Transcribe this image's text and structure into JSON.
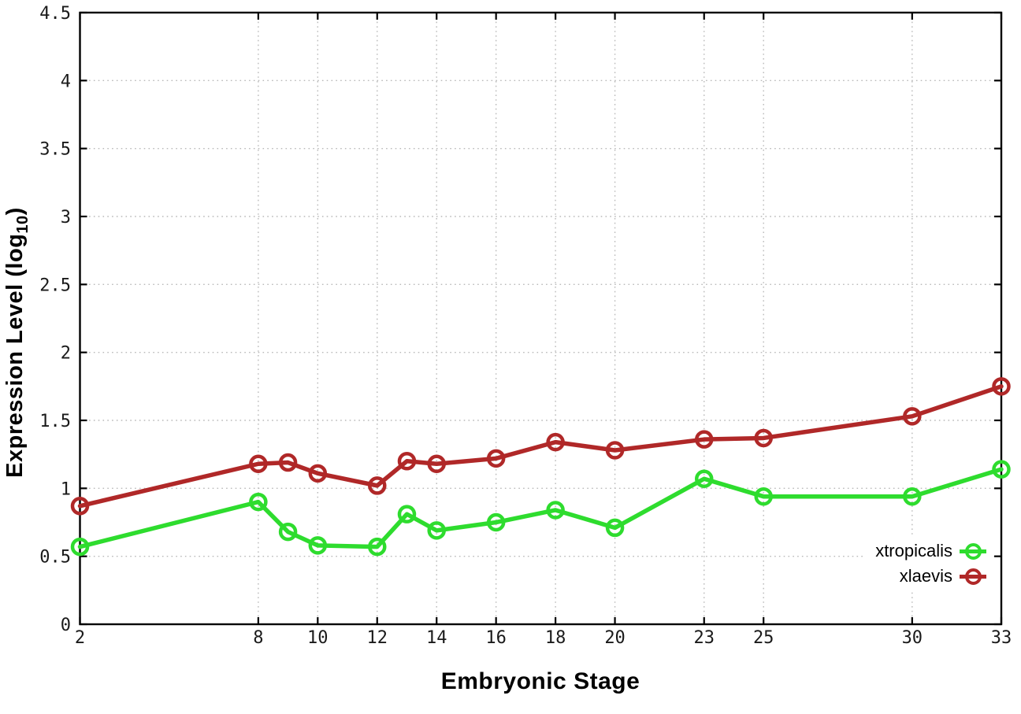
{
  "chart_data": {
    "type": "line",
    "title": "",
    "xlabel": "Embryonic Stage",
    "ylabel": "Expression Level (log10)",
    "ylabel_parts": {
      "prefix": "Expression Level (log",
      "sub": "10",
      "suffix": ")"
    },
    "xlim": [
      2,
      33
    ],
    "ylim": [
      0,
      4.5
    ],
    "grid": true,
    "legend_position": "bottom-right-inside",
    "x": [
      2,
      8,
      9,
      10,
      12,
      13,
      14,
      16,
      18,
      20,
      23,
      25,
      30,
      33
    ],
    "xtick_labels": [
      "2",
      "8",
      "10",
      "12",
      "14",
      "16",
      "18",
      "20",
      "23",
      "25",
      "30",
      "33"
    ],
    "xtick_values": [
      2,
      8,
      10,
      12,
      14,
      16,
      18,
      20,
      23,
      25,
      30,
      33
    ],
    "ytick_labels": [
      "0",
      "0.5",
      "1",
      "1.5",
      "2",
      "2.5",
      "3",
      "3.5",
      "4",
      "4.5"
    ],
    "ytick_values": [
      0,
      0.5,
      1,
      1.5,
      2,
      2.5,
      3,
      3.5,
      4,
      4.5
    ],
    "series": [
      {
        "name": "xtropicalis",
        "color": "#2edc2e",
        "values": [
          0.57,
          0.9,
          0.68,
          0.58,
          0.57,
          0.81,
          0.69,
          0.75,
          0.84,
          0.71,
          1.07,
          0.94,
          0.94,
          1.14
        ]
      },
      {
        "name": "xlaevis",
        "color": "#b02828",
        "values": [
          0.87,
          1.18,
          1.19,
          1.11,
          1.02,
          1.2,
          1.18,
          1.22,
          1.34,
          1.28,
          1.36,
          1.37,
          1.53,
          1.75
        ]
      }
    ],
    "style": {
      "grid_color": "#b9b9b9",
      "axis_color": "#000000",
      "tick_label_color": "#1a1a1a",
      "background": "#ffffff"
    }
  }
}
